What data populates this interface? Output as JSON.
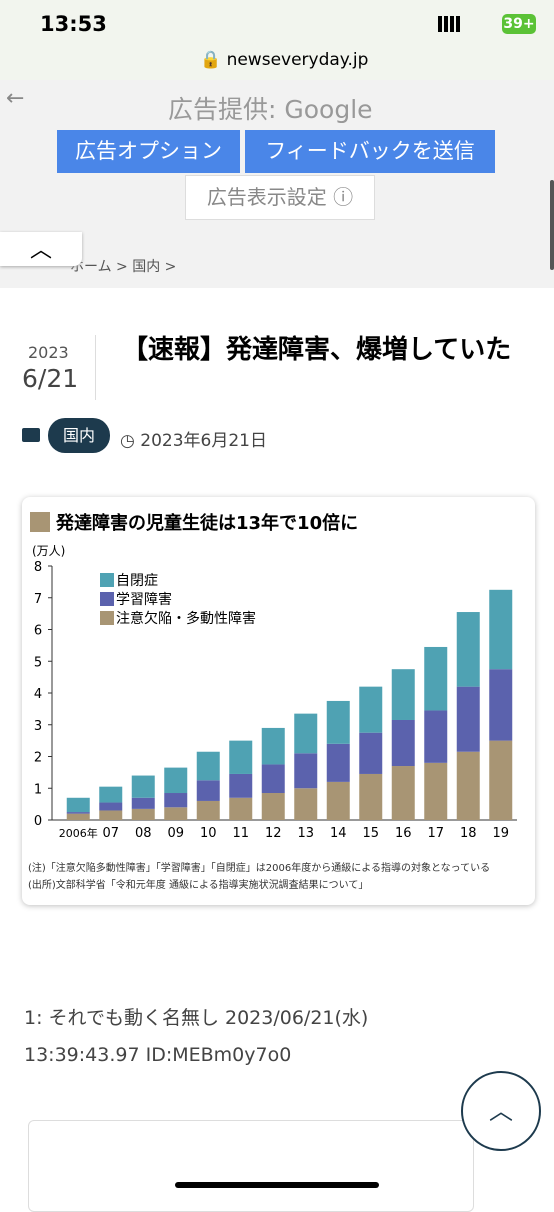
{
  "status_bar": {
    "time": "13:53",
    "battery": "39+"
  },
  "browser": {
    "url": "newseveryday.jp"
  },
  "ad": {
    "provider": "広告提供: Google",
    "buttons": [
      "広告オプション",
      "フィードバックを送信"
    ],
    "settings": "広告表示設定"
  },
  "breadcrumb": [
    "ホーム",
    "国内"
  ],
  "article": {
    "year": "2023",
    "month_day": "6/21",
    "title": "【速報】発達障害、爆増していた",
    "category": "国内",
    "date": "2023年6月21日"
  },
  "chart_data": {
    "type": "bar",
    "stacked": true,
    "title": "発達障害の児童生徒は13年で10倍に",
    "y_label": "(万人)",
    "categories": [
      "2006年",
      "07",
      "08",
      "09",
      "10",
      "11",
      "12",
      "13",
      "14",
      "15",
      "16",
      "17",
      "18",
      "19"
    ],
    "series": [
      {
        "name": "注意欠陥・多動性障害",
        "color": "#a89574",
        "values": [
          0.2,
          0.3,
          0.35,
          0.4,
          0.6,
          0.7,
          0.85,
          1.0,
          1.2,
          1.45,
          1.7,
          1.8,
          2.15,
          2.5
        ]
      },
      {
        "name": "学習障害",
        "color": "#5b62ad",
        "values": [
          0.05,
          0.25,
          0.35,
          0.45,
          0.65,
          0.75,
          0.9,
          1.1,
          1.2,
          1.3,
          1.45,
          1.65,
          2.05,
          2.25
        ]
      },
      {
        "name": "自閉症",
        "color": "#4fa2b3",
        "values": [
          0.45,
          0.5,
          0.7,
          0.8,
          0.9,
          1.05,
          1.15,
          1.25,
          1.35,
          1.45,
          1.6,
          2.0,
          2.35,
          2.5
        ]
      }
    ],
    "ylim": [
      0,
      8
    ],
    "yticks": [
      0,
      1,
      2,
      3,
      4,
      5,
      6,
      7,
      8
    ],
    "notes": [
      "(注)「注意欠陥多動性障害」「学習障害」「自閉症」は2006年度から通級による指導の対象となっている",
      "(出所)文部科学省「令和元年度 通級による指導実施状況調査結果について」"
    ]
  },
  "post": {
    "header": "1: それでも動く名無し 2023/06/21(水)",
    "time_id": "13:39:43.97 ID:MEBm0y7o0"
  }
}
